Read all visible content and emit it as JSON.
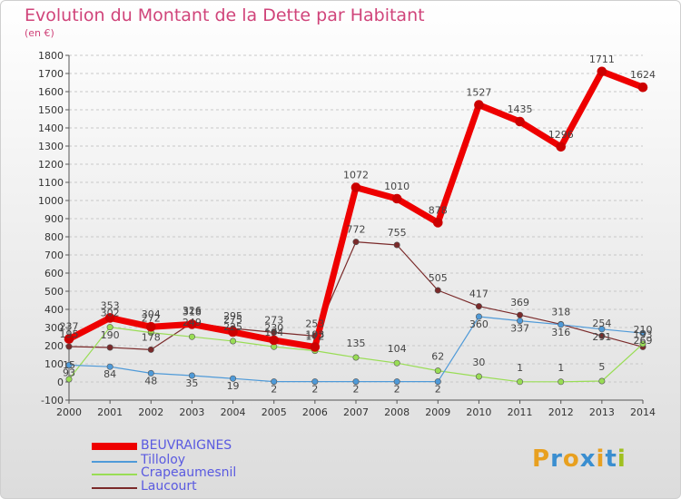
{
  "title": "Evolution du Montant de la Dette par Habitant",
  "unit": "(en €)",
  "logo": {
    "text": "Proxiti",
    "colors": [
      "#e8a020",
      "#3a8ed0",
      "#e8a020",
      "#3a8ed0",
      "#e8a020",
      "#3a8ed0",
      "#a0c020"
    ]
  },
  "chart_data": {
    "type": "line",
    "x": [
      "2000",
      "2001",
      "2002",
      "2003",
      "2004",
      "2005",
      "2006",
      "2007",
      "2008",
      "2009",
      "2010",
      "2011",
      "2012",
      "2013",
      "2014"
    ],
    "ylim": [
      -100,
      1800
    ],
    "yticks": [
      -100,
      0,
      100,
      200,
      300,
      400,
      500,
      600,
      700,
      800,
      900,
      1000,
      1100,
      1200,
      1300,
      1400,
      1500,
      1600,
      1700,
      1800
    ],
    "grid": "horizontal dashed",
    "legend_position": "bottom-left",
    "series": [
      {
        "name": "BEUVRAIGNES",
        "color": "#ee0000",
        "values": [
          237,
          353,
          304,
          318,
          275,
          230,
          193,
          1072,
          1010,
          878,
          1527,
          1435,
          1296,
          1711,
          1624
        ],
        "labels": [
          "237",
          "353",
          "304",
          "318",
          "275",
          "230",
          "193",
          "1072",
          "1010",
          "878",
          "1527",
          "1435",
          "1296",
          "1711",
          "1624"
        ]
      },
      {
        "name": "Tilloloy",
        "color": "#4f9ad8",
        "values": [
          93,
          84,
          48,
          35,
          19,
          2,
          2,
          2,
          2,
          2,
          360,
          337,
          316,
          291,
          269
        ],
        "labels": [
          "93",
          "84",
          "48",
          "35",
          "19",
          "2",
          "2",
          "2",
          "2",
          "2",
          "360",
          "337",
          "316",
          "291",
          "269"
        ]
      },
      {
        "name": "Crapeaumesnil",
        "color": "#99dd55",
        "values": [
          15,
          302,
          272,
          249,
          225,
          194,
          172,
          135,
          104,
          62,
          30,
          1,
          1,
          5,
          210
        ],
        "labels": [
          "15",
          "302",
          "272",
          "249",
          "225",
          "194",
          "172",
          "135",
          "104",
          "62",
          "30",
          "1",
          "1",
          "5",
          "210"
        ]
      },
      {
        "name": "Laucourt",
        "color": "#7a2a2a",
        "values": [
          195,
          190,
          178,
          326,
          295,
          273,
          253,
          772,
          755,
          505,
          417,
          369,
          318,
          254,
          193
        ],
        "labels": [
          "195",
          "190",
          "178",
          "326",
          "295",
          "273",
          "253",
          "772",
          "755",
          "505",
          "417",
          "369",
          "318",
          "254",
          "193"
        ]
      }
    ]
  }
}
